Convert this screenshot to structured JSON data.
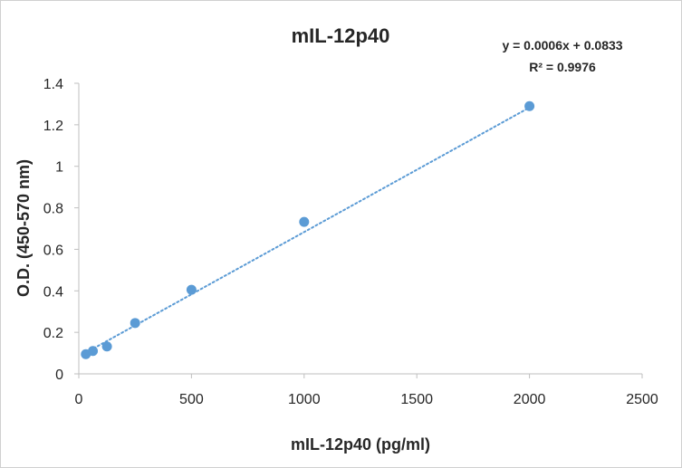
{
  "chart_data": {
    "type": "scatter",
    "title": "mIL-12p40",
    "xlabel": "mIL-12p40 (pg/ml)",
    "ylabel": "O.D. (450-570 nm)",
    "xlim": [
      0,
      2500
    ],
    "ylim": [
      0,
      1.4
    ],
    "x_ticks": [
      "0",
      "500",
      "1000",
      "1500",
      "2000",
      "2500"
    ],
    "y_ticks": [
      "0",
      "0.2",
      "0.4",
      "0.6",
      "0.8",
      "1",
      "1.2",
      "1.4"
    ],
    "grid": false,
    "series": [
      {
        "x": [
          31.25,
          62.5,
          125,
          250,
          500,
          1000,
          2000
        ],
        "y": [
          0.095,
          0.11,
          0.132,
          0.245,
          0.405,
          0.732,
          1.29
        ]
      }
    ],
    "trendline": {
      "type": "linear",
      "slope": 0.0006,
      "intercept": 0.0833,
      "style": "dotted",
      "equation": "y = 0.0006x + 0.0833",
      "r_squared_label": "R² = 0.9976"
    },
    "colors": {
      "points": "#5b9bd5",
      "trendline": "#5b9bd5",
      "axis": "#bfbfbf",
      "text": "#262626"
    }
  }
}
